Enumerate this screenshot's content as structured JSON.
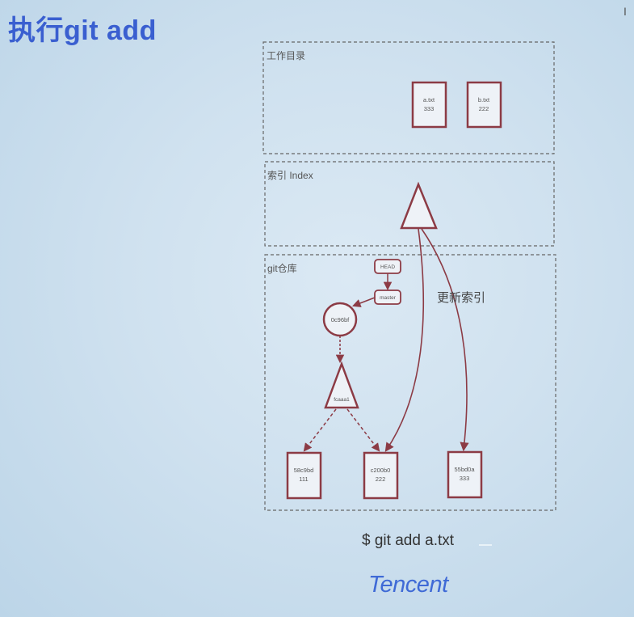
{
  "slide": {
    "title": "执行git add",
    "command": "$ git add a.txt",
    "logo": "Tencent",
    "corner_mark": "I"
  },
  "diagram": {
    "zones": {
      "workdir": "工作目录",
      "index": "索引 Index",
      "repo": "git仓库"
    },
    "workdir_files": [
      {
        "name": "a.txt",
        "content": "333"
      },
      {
        "name": "b.txt",
        "content": "222"
      }
    ],
    "repo": {
      "head": "HEAD",
      "branch": "master",
      "commit": "0c96bf",
      "tree": "fcaaa1",
      "blobs": [
        {
          "hash": "58c9bd",
          "content": "111"
        },
        {
          "hash": "c200b0",
          "content": "222"
        },
        {
          "hash": "55bd0a",
          "content": "333"
        }
      ]
    },
    "update_label": "更新索引"
  },
  "colors": {
    "node_stroke": "#8c3b45",
    "zone_border": "#666666",
    "title": "#3a5fd0",
    "logo": "#3f6ad6"
  }
}
